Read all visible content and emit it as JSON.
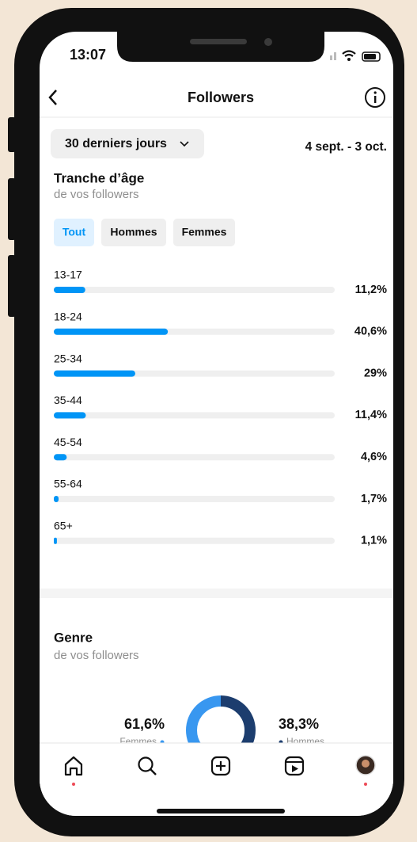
{
  "status_time": "13:07",
  "header": {
    "title": "Followers"
  },
  "filter": {
    "period": "30 derniers jours",
    "dates": "4 sept. - 3 oct."
  },
  "age": {
    "title": "Tranche d’âge",
    "subtitle": "de vos followers",
    "tabs": [
      "Tout",
      "Hommes",
      "Femmes"
    ],
    "bar_color": "#0095f6",
    "rows": [
      {
        "label": "13-17",
        "value": 11.2,
        "value_label": "11,2%"
      },
      {
        "label": "18-24",
        "value": 40.6,
        "value_label": "40,6%"
      },
      {
        "label": "25-34",
        "value": 29,
        "value_label": "29%"
      },
      {
        "label": "35-44",
        "value": 11.4,
        "value_label": "11,4%"
      },
      {
        "label": "45-54",
        "value": 4.6,
        "value_label": "4,6%"
      },
      {
        "label": "55-64",
        "value": 1.7,
        "value_label": "1,7%"
      },
      {
        "label": "65+",
        "value": 1.1,
        "value_label": "1,1%"
      }
    ]
  },
  "gender": {
    "title": "Genre",
    "subtitle": "de vos followers",
    "segments": [
      {
        "name": "Femmes",
        "value": 61.6,
        "value_label": "61,6%",
        "color": "#3897f0"
      },
      {
        "name": "Hommes",
        "value": 38.3,
        "value_label": "38,3%",
        "color": "#1c3d6e"
      }
    ]
  }
}
